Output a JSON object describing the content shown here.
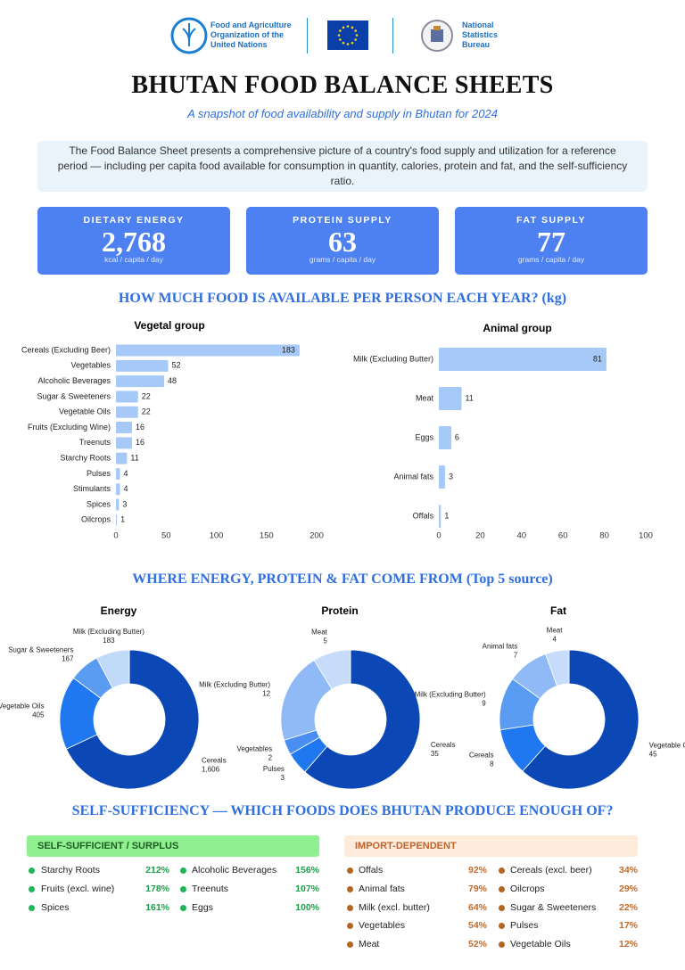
{
  "header": {
    "fao": "Food and Agriculture Organization of the United Nations",
    "nsb": "National Statistics Bureau",
    "title": "BHUTAN FOOD BALANCE SHEETS",
    "subtitle": "A snapshot of food availability and supply in Bhutan for 2024",
    "intro": "The Food Balance Sheet presents a comprehensive picture of a country's food supply and utilization for a reference period — including per capita food available for consumption in quantity, calories, protein and fat, and the self-sufficiency ratio."
  },
  "kpis": [
    {
      "label": "DIETARY ENERGY",
      "value": "2,768",
      "unit": "kcal / capita / day"
    },
    {
      "label": "PROTEIN SUPPLY",
      "value": "63",
      "unit": "grams / capita / day"
    },
    {
      "label": "FAT SUPPLY",
      "value": "77",
      "unit": "grams / capita / day"
    }
  ],
  "sections": {
    "availability": "HOW MUCH FOOD IS AVAILABLE PER PERSON EACH YEAR? (kg)",
    "sources": "WHERE ENERGY, PROTEIN & FAT COME FROM (Top 5 source)",
    "self_sufficiency": "SELF-SUFFICIENCY — WHICH FOODS DOES BHUTAN PRODUCE ENOUGH OF?"
  },
  "chart_data": [
    {
      "type": "bar",
      "orientation": "horizontal",
      "title": "Vegetal group",
      "categories": [
        "Cereals (Excluding Beer)",
        "Vegetables",
        "Alcoholic Beverages",
        "Sugar & Sweeteners",
        "Vegetable Oils",
        "Fruits (Excluding Wine)",
        "Treenuts",
        "Starchy Roots",
        "Pulses",
        "Stimulants",
        "Spices",
        "Oilcrops"
      ],
      "values": [
        183,
        52,
        48,
        22,
        22,
        16,
        16,
        11,
        4,
        4,
        3,
        1
      ],
      "color": "#a6c9f7",
      "xlim": [
        0,
        200
      ],
      "xticks": [
        0,
        50,
        100,
        150,
        200
      ],
      "grid": false
    },
    {
      "type": "bar",
      "orientation": "horizontal",
      "title": "Animal group",
      "categories": [
        "Milk (Excluding Butter)",
        "Meat",
        "Eggs",
        "Animal fats",
        "Offals"
      ],
      "values": [
        81,
        11,
        6,
        3,
        1
      ],
      "color": "#a6c9f7",
      "xlim": [
        0,
        100
      ],
      "xticks": [
        0,
        20,
        40,
        60,
        80,
        100
      ],
      "grid": false
    },
    {
      "type": "pie",
      "donut": true,
      "title": "Energy",
      "categories": [
        "Cereals",
        "Vegetable Oils",
        "Sugar & Sweeteners",
        "Milk (Excluding Butter)"
      ],
      "values": [
        1606,
        405,
        167,
        183
      ],
      "value_labels": [
        "1,606",
        "405",
        "167",
        "183"
      ],
      "colors": [
        "#0b48b6",
        "#1f78f0",
        "#5a9cf2",
        "#c2dafa"
      ]
    },
    {
      "type": "pie",
      "donut": true,
      "title": "Protein",
      "categories": [
        "Cereals",
        "Pulses",
        "Vegetables",
        "Milk (Excluding Butter)",
        "Meat"
      ],
      "values": [
        35,
        3,
        2,
        12,
        5
      ],
      "colors": [
        "#0b48b6",
        "#1f78f0",
        "#4b8ef2",
        "#8fbaf5",
        "#c6dcfa"
      ]
    },
    {
      "type": "pie",
      "donut": true,
      "title": "Fat",
      "categories": [
        "Vegetable Oils",
        "Cereals",
        "Milk (Excluding Butter)",
        "Animal fats",
        "Meat"
      ],
      "values": [
        45,
        8,
        9,
        7,
        4
      ],
      "colors": [
        "#0b48b6",
        "#1f78f0",
        "#5a9cf2",
        "#8fbaf5",
        "#c6dcfa"
      ]
    }
  ],
  "self_sufficient": {
    "title": "SELF-SUFFICIENT / SURPLUS",
    "items": [
      [
        "Starchy Roots",
        "212%"
      ],
      [
        "Fruits (excl. wine)",
        "178%"
      ],
      [
        "Spices",
        "161%"
      ],
      [
        "Alcoholic Beverages",
        "156%"
      ],
      [
        "Treenuts",
        "107%"
      ],
      [
        "Eggs",
        "100%"
      ]
    ]
  },
  "import_dependent": {
    "title": "IMPORT-DEPENDENT",
    "items": [
      [
        "Offals",
        "92%"
      ],
      [
        "Animal fats",
        "79%"
      ],
      [
        "Milk (excl. butter)",
        "64%"
      ],
      [
        "Vegetables",
        "54%"
      ],
      [
        "Meat",
        "52%"
      ],
      [
        "Cereals (excl. beer)",
        "34%"
      ],
      [
        "Oilcrops",
        "29%"
      ],
      [
        "Sugar & Sweeteners",
        "22%"
      ],
      [
        "Pulses",
        "17%"
      ],
      [
        "Vegetable Oils",
        "12%"
      ]
    ]
  }
}
